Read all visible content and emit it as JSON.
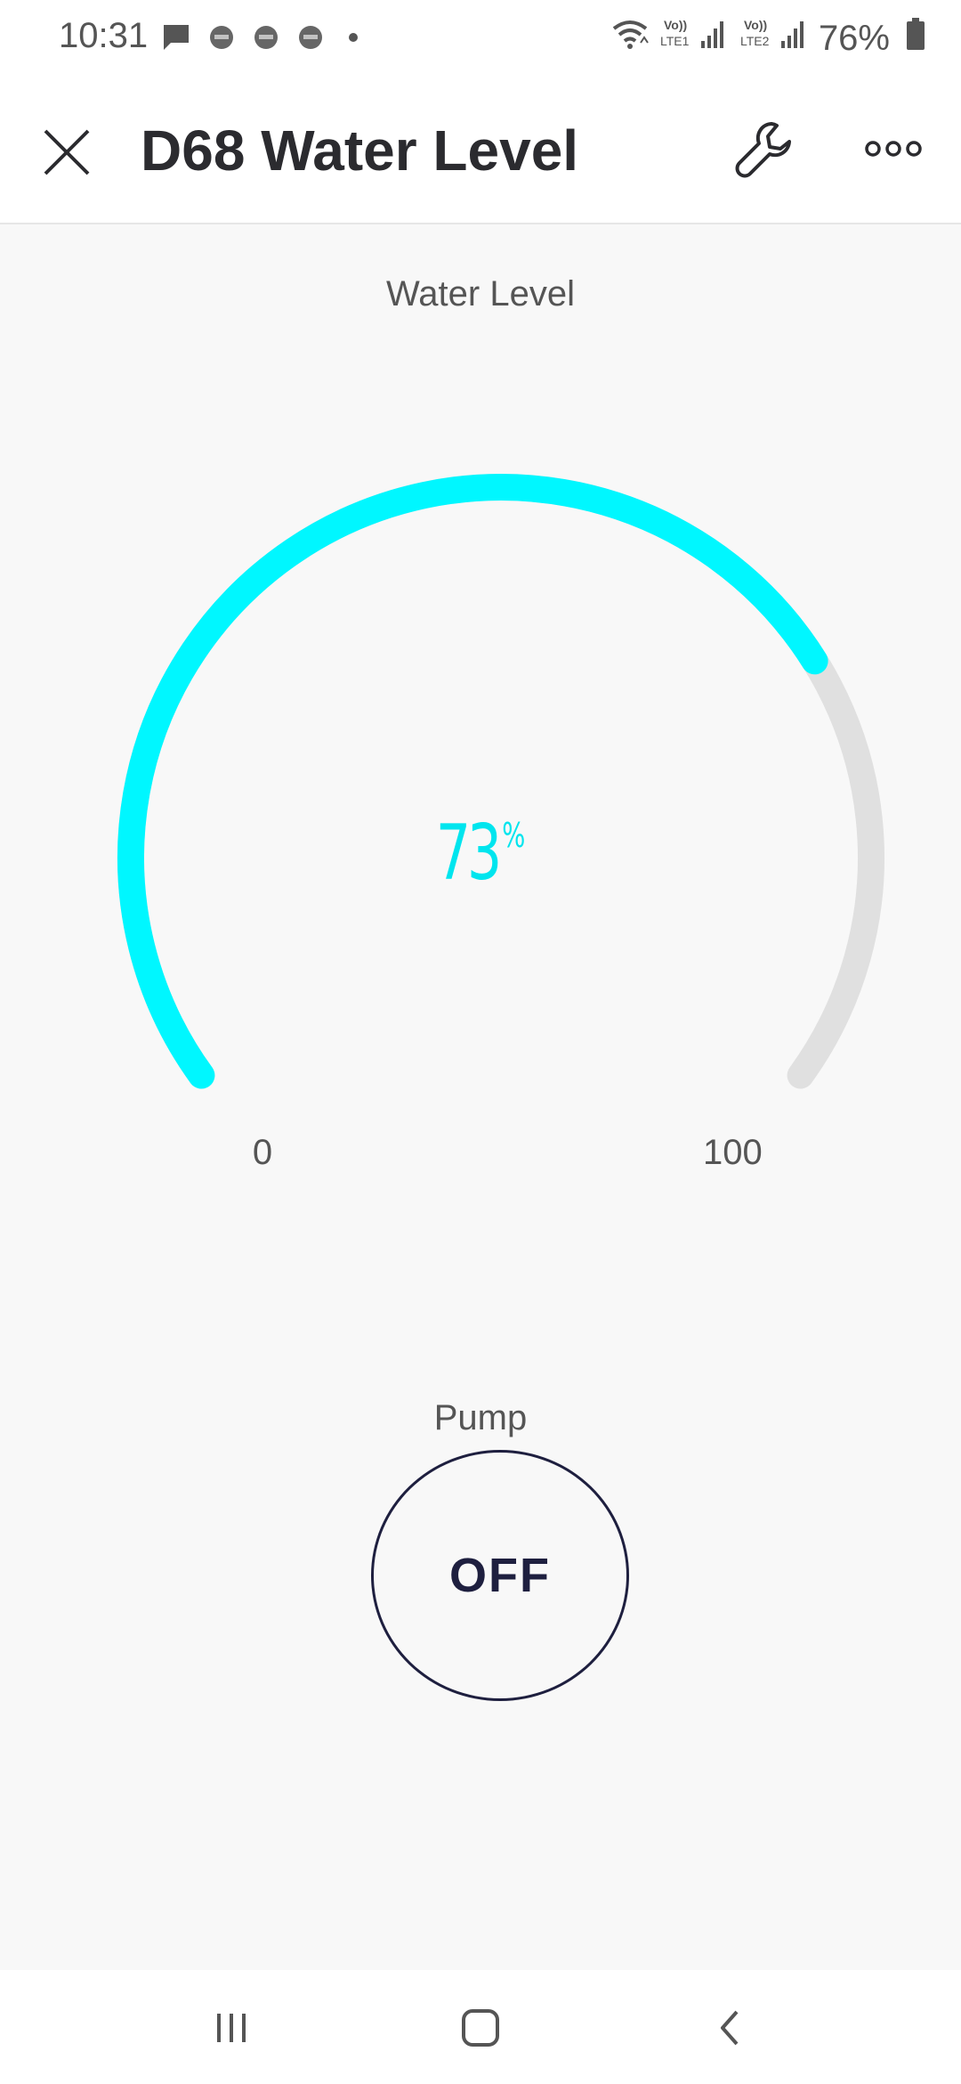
{
  "status_bar": {
    "time": "10:31",
    "battery": "76%",
    "notification_icons": [
      "message-icon",
      "app-notification-icon",
      "app-notification-icon",
      "app-notification-icon",
      "more-dot-icon"
    ],
    "right_icons": [
      "wifi-icon",
      "volte1-signal-icon",
      "volte2-signal-icon",
      "battery-icon"
    ]
  },
  "header": {
    "title": "D68 Water Level",
    "close_icon": "close-icon",
    "settings_icon": "wrench-icon",
    "more_icon": "more-horizontal-icon"
  },
  "gauge": {
    "title": "Water Level",
    "value": 73,
    "value_text": "73",
    "unit": "%",
    "min": "0",
    "max": "100",
    "min_value": 0,
    "max_value": 100,
    "active_color": "#00f7ff",
    "track_color": "#e0e0e0"
  },
  "pump": {
    "label": "Pump",
    "state": "OFF",
    "border_color": "#1e1f3f"
  },
  "nav_bar": {
    "icons": [
      "recents-icon",
      "home-icon",
      "back-icon"
    ]
  }
}
